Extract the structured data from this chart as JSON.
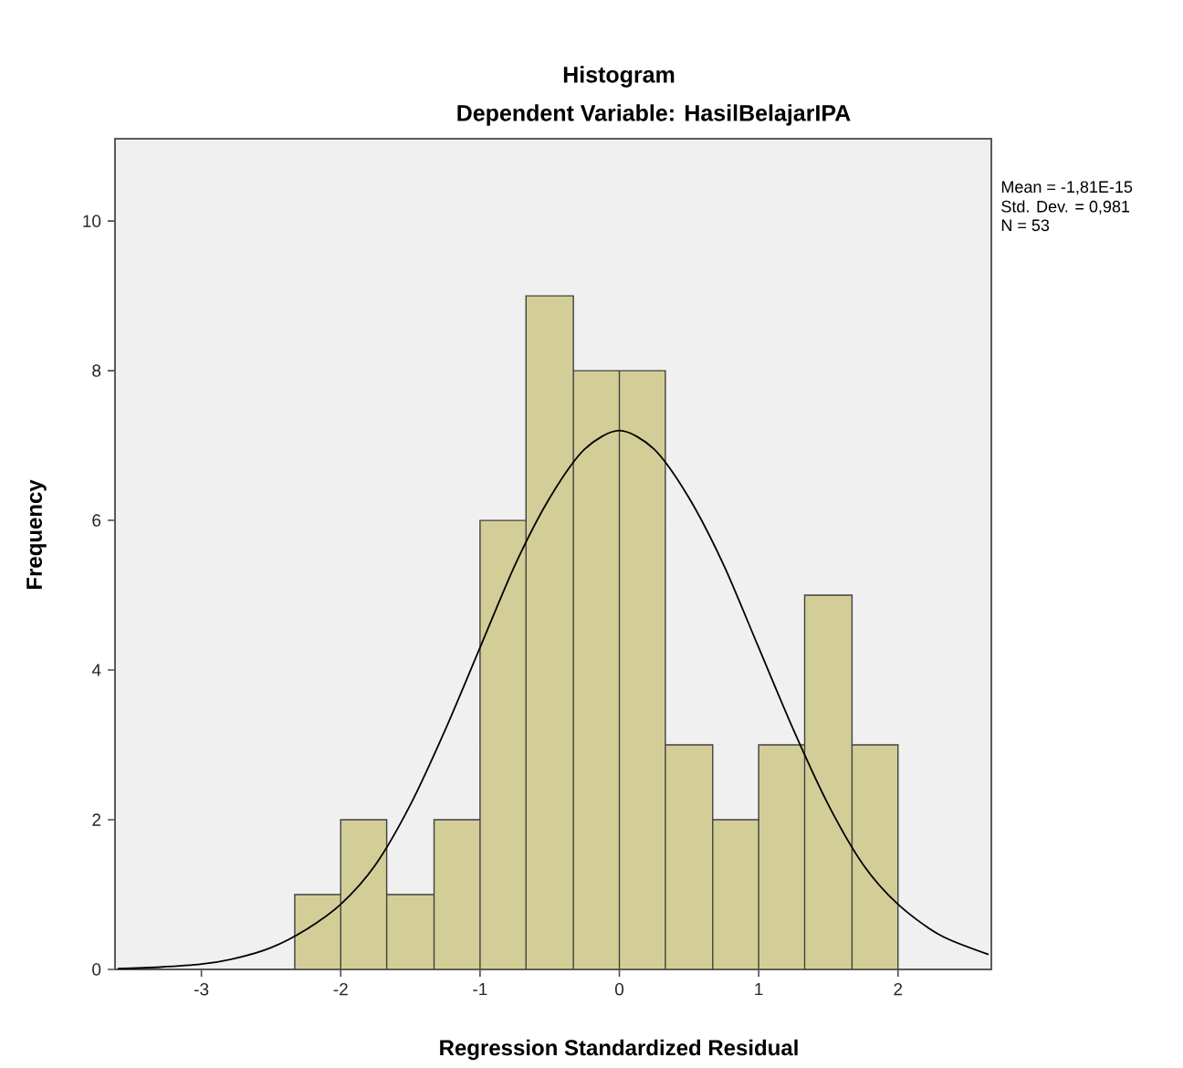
{
  "chart_data": {
    "type": "histogram",
    "title": "Histogram",
    "subtitle": "Dependent Variable: HasilBelajarIPA",
    "xlabel": "Regression Standardized Residual",
    "ylabel": "Frequency",
    "bins": [
      -2.33,
      -2,
      -1.67,
      -1.33,
      -1,
      -0.67,
      -0.33,
      0,
      0.33,
      0.67,
      1,
      1.33,
      1.67,
      2
    ],
    "values": [
      1,
      2,
      1,
      2,
      6,
      9,
      8,
      8,
      3,
      2,
      3,
      5,
      3
    ],
    "color": "#d3ce97",
    "series": [
      {
        "type": "line",
        "color": "#000000",
        "x": [
          -3.6,
          -3.3,
          -3,
          -2.75,
          -2.5,
          -2.25,
          -2,
          -1.75,
          -1.5,
          -1.25,
          -1,
          -0.75,
          -0.5,
          -0.25,
          0,
          0.25,
          0.5,
          0.75,
          1,
          1.25,
          1.5,
          1.75,
          2,
          2.3,
          2.65
        ],
        "values": [
          0.01,
          0.03,
          0.07,
          0.15,
          0.29,
          0.53,
          0.87,
          1.4,
          2.2,
          3.2,
          4.3,
          5.4,
          6.3,
          6.95,
          7.2,
          6.95,
          6.3,
          5.4,
          4.3,
          3.2,
          2.2,
          1.4,
          0.87,
          0.46,
          0.2
        ]
      }
    ],
    "annotations": [
      "Mean = -1,81E-15",
      "Std. Dev. = 0,981",
      "N = 53"
    ],
    "xlim": [
      -3.62,
      2.67
    ],
    "ylim": [
      0,
      11.1
    ],
    "xticks": [
      -3,
      -2,
      -1,
      0,
      1,
      2
    ],
    "yticks": [
      0,
      2,
      4,
      6,
      8,
      10
    ]
  }
}
